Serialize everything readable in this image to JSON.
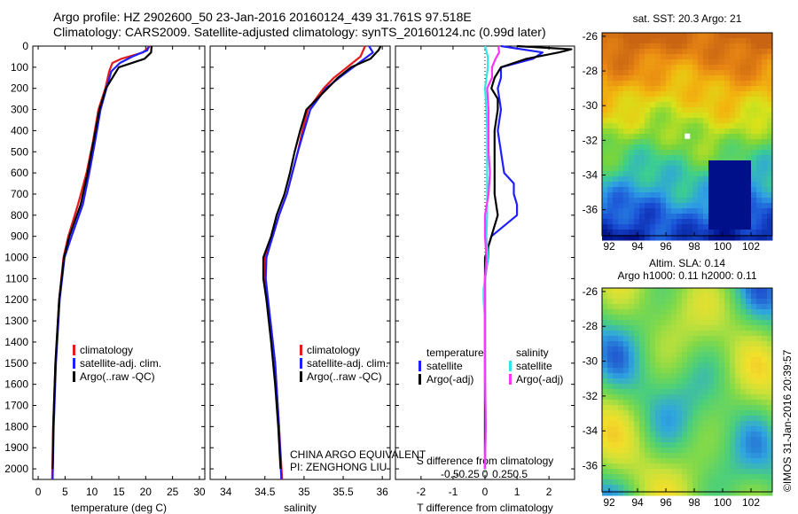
{
  "header": {
    "line1": "Argo profile: HZ 2902600_50 23-Jan-2016 20160124_439 31.761S 97.518E",
    "line2": "Climatology: CARS2009. Satellite-adjusted climatology: synTS_20160124.nc (0.99d later)"
  },
  "colors": {
    "climatology": "#e41a1c",
    "satellite": "#1f1fff",
    "argo": "#000000",
    "salinity_satellite": "#33e6e6",
    "salinity_argo": "#ff33ff"
  },
  "depth_ticks": [
    0,
    100,
    200,
    300,
    400,
    500,
    600,
    700,
    800,
    900,
    1000,
    1100,
    1200,
    1300,
    1400,
    1500,
    1600,
    1700,
    1800,
    1900,
    2000
  ],
  "chart_data": [
    {
      "type": "line",
      "panel": "temperature",
      "xlabel": "temperature (deg C)",
      "ylim": [
        2050,
        0
      ],
      "xlim": [
        -1,
        31
      ],
      "xticks": [
        0,
        5,
        10,
        15,
        20,
        25,
        30
      ],
      "legend": [
        "climatology",
        "satellite-adj. clim.",
        "Argo(..raw -QC)"
      ],
      "legend_placement": "lower-middle",
      "series": [
        {
          "name": "climatology",
          "color": "#e41a1c",
          "depth": [
            0,
            30,
            60,
            80,
            120,
            200,
            300,
            450,
            600,
            750,
            900,
            1000,
            1200,
            1500,
            1800,
            2050
          ],
          "values": [
            20.8,
            19.5,
            15.5,
            13.8,
            13.2,
            12.5,
            11.2,
            10.2,
            9.0,
            7.4,
            5.6,
            4.7,
            3.9,
            3.2,
            2.8,
            2.6
          ]
        },
        {
          "name": "satellite-adj. clim.",
          "color": "#1f1fff",
          "depth": [
            0,
            20,
            50,
            80,
            120,
            200,
            300,
            450,
            600,
            750,
            900,
            1000,
            1200,
            1500,
            1800,
            2050
          ],
          "values": [
            20.6,
            20.3,
            17.5,
            15.2,
            13.6,
            12.7,
            11.6,
            10.6,
            9.5,
            8.3,
            6.2,
            4.9,
            4.0,
            3.3,
            2.9,
            2.7
          ]
        },
        {
          "name": "Argo(..raw -QC)",
          "color": "#000000",
          "depth": [
            0,
            30,
            60,
            100,
            200,
            300,
            450,
            600,
            750,
            900,
            1000,
            1200,
            1500,
            1800,
            2000
          ],
          "values": [
            21.1,
            21.0,
            19.8,
            15.0,
            12.6,
            11.4,
            10.3,
            9.2,
            7.9,
            5.8,
            4.8,
            3.9,
            3.2,
            2.8,
            2.7
          ]
        }
      ]
    },
    {
      "type": "line",
      "panel": "salinity",
      "xlabel": "salinity",
      "ylim": [
        2050,
        0
      ],
      "xlim": [
        33.8,
        36.1
      ],
      "xticks": [
        34,
        34.5,
        35,
        35.5,
        36
      ],
      "xticklabels": [
        "34",
        "34.5",
        "35",
        "35.5",
        "36"
      ],
      "legend": [
        "climatology",
        "satellite-adj. clim.",
        "Argo(..raw -QC)"
      ],
      "legend_placement": "lower-right",
      "series": [
        {
          "name": "climatology",
          "color": "#e41a1c",
          "depth": [
            0,
            50,
            100,
            150,
            200,
            300,
            400,
            500,
            600,
            700,
            800,
            900,
            1000,
            1100,
            1300,
            1500,
            1800,
            2050
          ],
          "values": [
            35.78,
            35.72,
            35.55,
            35.38,
            35.25,
            35.05,
            34.98,
            34.92,
            34.85,
            34.78,
            34.68,
            34.6,
            34.5,
            34.5,
            34.57,
            34.63,
            34.68,
            34.72
          ]
        },
        {
          "name": "satellite-adj. clim.",
          "color": "#1f1fff",
          "depth": [
            0,
            30,
            80,
            150,
            200,
            300,
            400,
            500,
            600,
            700,
            800,
            900,
            1000,
            1100,
            1300,
            1500,
            1800,
            2050
          ],
          "values": [
            35.83,
            35.88,
            35.7,
            35.45,
            35.28,
            35.08,
            35.0,
            34.92,
            34.85,
            34.78,
            34.68,
            34.6,
            34.52,
            34.51,
            34.57,
            34.63,
            34.68,
            34.71
          ]
        },
        {
          "name": "Argo(..raw -QC)",
          "color": "#000000",
          "depth": [
            0,
            20,
            60,
            100,
            150,
            200,
            300,
            400,
            500,
            600,
            700,
            800,
            900,
            1000,
            1100,
            1200,
            1400,
            1600,
            1800,
            2000
          ],
          "values": [
            35.98,
            35.95,
            35.85,
            35.6,
            35.43,
            35.3,
            35.03,
            34.95,
            34.88,
            34.82,
            34.75,
            34.65,
            34.58,
            34.48,
            34.48,
            34.52,
            34.58,
            34.63,
            34.67,
            34.7
          ]
        }
      ]
    },
    {
      "type": "line",
      "panel": "differences",
      "xlabel": "T difference from climatology",
      "xlabel_top": "S difference from climatology",
      "ylim": [
        2050,
        0
      ],
      "xlim": [
        -2.8,
        2.8
      ],
      "xticks": [
        -2,
        -1,
        0,
        1,
        2
      ],
      "xticks_salinity": [
        -0.5,
        -0.25,
        0,
        0.25,
        0.5
      ],
      "xticklabels_salinity": [
        "-0.5",
        "-0.25",
        "0",
        "0.25",
        "0.5"
      ],
      "legend_temperature": {
        "title": "temperature",
        "entries": [
          "satellite",
          "Argo(-adj)"
        ]
      },
      "legend_salinity": {
        "title": "salinity",
        "entries": [
          "satellite",
          "Argo(-adj)"
        ]
      },
      "legend_placement": "lower-middle",
      "series": [
        {
          "name": "satellite",
          "group": "temperature",
          "color": "#1f1fff",
          "depth": [
            0,
            30,
            60,
            100,
            150,
            200,
            300,
            400,
            500,
            600,
            650,
            700,
            750,
            800,
            850,
            900,
            950,
            1000,
            1050,
            1100,
            1200,
            1500,
            2000
          ],
          "values": [
            0.5,
            1.8,
            1.5,
            0.5,
            0.5,
            0.4,
            0.5,
            0.4,
            0.5,
            0.6,
            0.9,
            0.9,
            1.0,
            1.0,
            0.6,
            0.2,
            0.1,
            0.1,
            0.05,
            0.0,
            0.0,
            0.0,
            0.0
          ]
        },
        {
          "name": "Argo(-adj)",
          "group": "temperature",
          "color": "#000000",
          "depth": [
            0,
            15,
            30,
            60,
            100,
            150,
            200,
            250,
            300,
            400,
            500,
            600,
            700,
            800,
            900,
            950,
            1000,
            1100,
            1300,
            1500,
            2000
          ],
          "values": [
            1.0,
            2.7,
            2.3,
            1.3,
            0.5,
            0.3,
            0.2,
            0.4,
            0.4,
            0.3,
            0.3,
            0.3,
            0.3,
            0.4,
            0.2,
            0.1,
            0.0,
            0.0,
            0.0,
            0.0,
            0.0
          ]
        },
        {
          "name": "satellite",
          "group": "salinity",
          "color": "#33e6e6",
          "depth": [
            0,
            50,
            100,
            200,
            300,
            400,
            500,
            600,
            700,
            800,
            900,
            1000,
            1100,
            1150,
            1200,
            1300,
            1500,
            1800,
            2000
          ],
          "values": [
            0.0,
            0.04,
            0.04,
            0.0,
            0.02,
            0.03,
            0.03,
            0.03,
            0.03,
            0.03,
            0.02,
            0.04,
            0.0,
            -0.02,
            -0.02,
            0.0,
            0.0,
            0.01,
            0.0
          ]
        },
        {
          "name": "Argo(-adj)",
          "group": "salinity",
          "color": "#ff33ff",
          "depth": [
            0,
            30,
            60,
            100,
            150,
            200,
            300,
            400,
            500,
            600,
            700,
            800,
            900,
            1000,
            1100,
            1300,
            1500,
            1800,
            2000
          ],
          "values": [
            0.19,
            0.2,
            0.15,
            0.1,
            0.1,
            0.03,
            0.05,
            0.05,
            0.05,
            0.07,
            0.05,
            0.0,
            0.0,
            0.02,
            0.0,
            0.0,
            0.0,
            0.01,
            0.0
          ]
        }
      ]
    },
    {
      "type": "heatmap",
      "panel": "sst-map",
      "title": "sat. SST: 20.3 Argo: 21",
      "xlim": [
        91.5,
        103.5
      ],
      "ylim": [
        -37.5,
        -25.8
      ],
      "xticks": [
        92,
        94,
        96,
        98,
        100,
        102
      ],
      "yticks": [
        -26,
        -28,
        -30,
        -32,
        -34,
        -36
      ]
    },
    {
      "type": "heatmap",
      "panel": "sla-map",
      "title": "Altim. SLA: 0.14",
      "subtitle": "Argo h1000: 0.11 h2000: 0.11",
      "xlim": [
        91.5,
        103.5
      ],
      "ylim": [
        -37.5,
        -25.8
      ],
      "xticks": [
        92,
        94,
        96,
        98,
        100,
        102
      ],
      "yticks": [
        -26,
        -28,
        -30,
        -32,
        -34,
        -36
      ]
    }
  ],
  "annotations": {
    "equivalent": "CHINA ARGO EQUIVALENT",
    "pi": "PI: ZENGHONG LIU",
    "stamp": "©IMOS 31-Jan-2016 20:39:57"
  }
}
